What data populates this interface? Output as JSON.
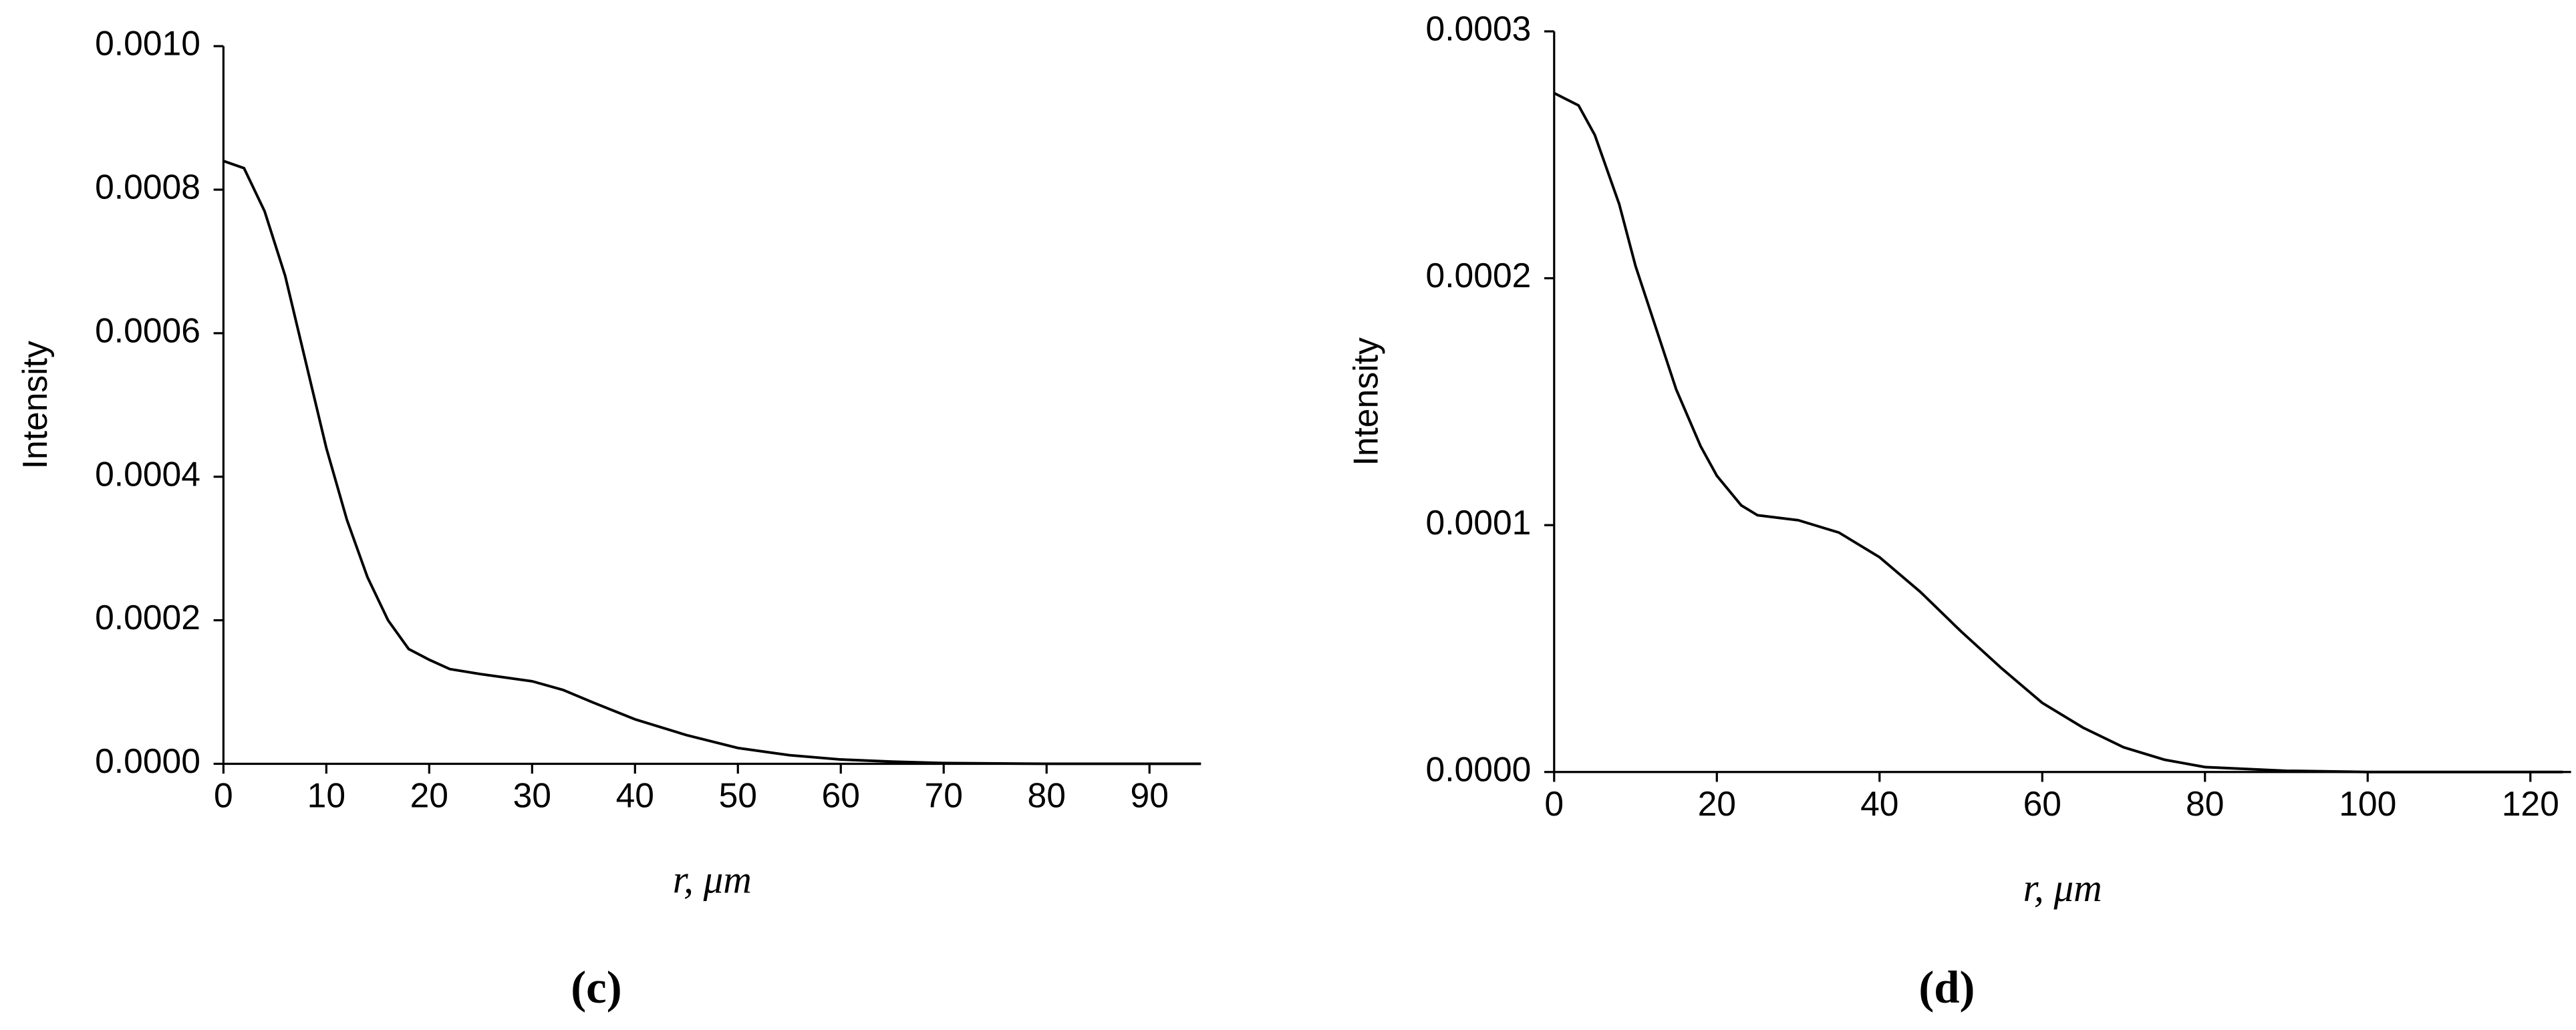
{
  "chart_data": [
    {
      "type": "line",
      "caption": "(c)",
      "xlabel": "r, μm",
      "ylabel": "Intensity",
      "xlim": [
        0,
        95
      ],
      "ylim": [
        0,
        0.001
      ],
      "xticks": [
        0,
        10,
        20,
        30,
        40,
        50,
        60,
        70,
        80,
        90
      ],
      "yticks": [
        {
          "value": 0,
          "label": "0.0000"
        },
        {
          "value": 0.0002,
          "label": "0.0002"
        },
        {
          "value": 0.0004,
          "label": "0.0004"
        },
        {
          "value": 0.0006,
          "label": "0.0006"
        },
        {
          "value": 0.0008,
          "label": "0.0008"
        },
        {
          "value": 0.001,
          "label": "0.0010"
        }
      ],
      "color": "#000000",
      "x": [
        0,
        2,
        4,
        6,
        8,
        10,
        12,
        14,
        16,
        18,
        20,
        22,
        25,
        30,
        33,
        36,
        40,
        45,
        50,
        55,
        60,
        65,
        70,
        80,
        95
      ],
      "values": [
        0.00084,
        0.00083,
        0.00077,
        0.00068,
        0.00056,
        0.00044,
        0.00034,
        0.00026,
        0.0002,
        0.00016,
        0.000145,
        0.000132,
        0.000125,
        0.000115,
        0.000103,
        8.5e-05,
        6.2e-05,
        4e-05,
        2.2e-05,
        1.2e-05,
        6e-06,
        3e-06,
        1e-06,
        0,
        0
      ]
    },
    {
      "type": "line",
      "caption": "(d)",
      "xlabel": "r, μm",
      "ylabel": "Intensity",
      "xlim": [
        0,
        125
      ],
      "ylim": [
        0,
        0.0003
      ],
      "xticks": [
        0,
        20,
        40,
        60,
        80,
        100,
        120
      ],
      "yticks": [
        {
          "value": 0,
          "label": "0.0000"
        },
        {
          "value": 0.0001,
          "label": "0.0001"
        },
        {
          "value": 0.0002,
          "label": "0.0002"
        },
        {
          "value": 0.0003,
          "label": "0.0003"
        }
      ],
      "color": "#000000",
      "x": [
        0,
        3,
        5,
        8,
        10,
        13,
        15,
        18,
        20,
        23,
        25,
        30,
        35,
        40,
        45,
        50,
        55,
        60,
        65,
        70,
        75,
        80,
        90,
        100,
        124
      ],
      "values": [
        0.000275,
        0.00027,
        0.000258,
        0.00023,
        0.000205,
        0.000175,
        0.000155,
        0.000132,
        0.00012,
        0.000108,
        0.000104,
        0.000102,
        9.7e-05,
        8.7e-05,
        7.3e-05,
        5.7e-05,
        4.2e-05,
        2.8e-05,
        1.8e-05,
        1e-05,
        5e-06,
        2e-06,
        5e-07,
        0,
        0
      ]
    }
  ]
}
